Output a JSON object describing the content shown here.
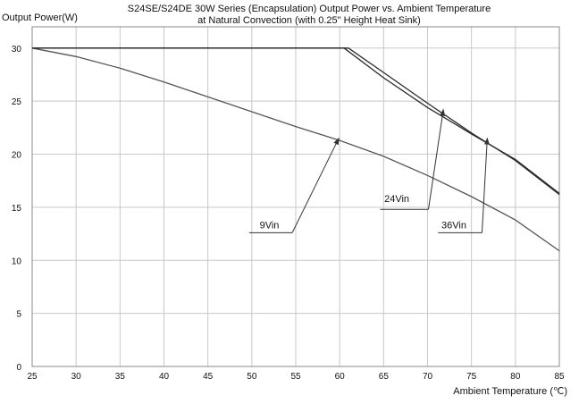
{
  "chart_data": {
    "type": "line",
    "title": "S24SE/S24DE 30W Series (Encapsulation)  Output Power vs. Ambient Temperature",
    "subtitle": "at Natural Convection (with 0.25\" Height Heat Sink)",
    "ylabel": "Output Power(W)",
    "xlabel": "Ambient Temperature (℃)",
    "xlim": [
      25,
      85
    ],
    "ylim": [
      0,
      32
    ],
    "x_ticks": [
      25,
      30,
      35,
      40,
      45,
      50,
      55,
      60,
      65,
      70,
      75,
      80,
      85
    ],
    "y_ticks": [
      0,
      5,
      10,
      15,
      20,
      25,
      30
    ],
    "grid": true,
    "legend": "none",
    "series_color": "#555555",
    "arrow_color": "#333333",
    "grid_color": "#c8c8c8",
    "series": [
      {
        "x": [
          25,
          30,
          35,
          40,
          45,
          50,
          55,
          60,
          65,
          70,
          75,
          80,
          85
        ],
        "y": [
          30,
          29.2,
          28.1,
          26.8,
          25.4,
          24.0,
          22.6,
          21.3,
          19.8,
          18.0,
          16.0,
          13.8,
          10.9
        ]
      },
      {
        "x": [
          25,
          30,
          35,
          40,
          45,
          50,
          55,
          60,
          61,
          65,
          70,
          75,
          80,
          85
        ],
        "y": [
          30,
          30,
          30,
          30,
          30,
          30,
          30,
          30,
          30,
          27.7,
          24.8,
          22.0,
          19.4,
          16.2
        ]
      },
      {
        "x": [
          25,
          30,
          35,
          40,
          45,
          50,
          55,
          60,
          60.5,
          65,
          70,
          75,
          80,
          85
        ],
        "y": [
          30,
          30,
          30,
          30,
          30,
          30,
          30,
          30,
          30,
          27.2,
          24.4,
          21.9,
          19.5,
          16.3
        ]
      }
    ],
    "annotations": [
      {
        "text": "9Vin",
        "text_x": 52,
        "text_y": 13.0,
        "line_x": [
          49.7,
          54.6
        ],
        "line_y": [
          12.6,
          12.6
        ],
        "arrow_to": [
          59.9,
          21.5
        ]
      },
      {
        "text": "24Vin",
        "text_x": 66.5,
        "text_y": 15.5,
        "line_x": [
          64.6,
          70.1
        ],
        "line_y": [
          14.8,
          14.8
        ],
        "arrow_to": [
          71.8,
          24.2
        ]
      },
      {
        "text": "36Vin",
        "text_x": 73,
        "text_y": 13.0,
        "line_x": [
          71.2,
          76.2
        ],
        "line_y": [
          12.6,
          12.6
        ],
        "arrow_to": [
          76.8,
          21.5
        ]
      }
    ]
  }
}
